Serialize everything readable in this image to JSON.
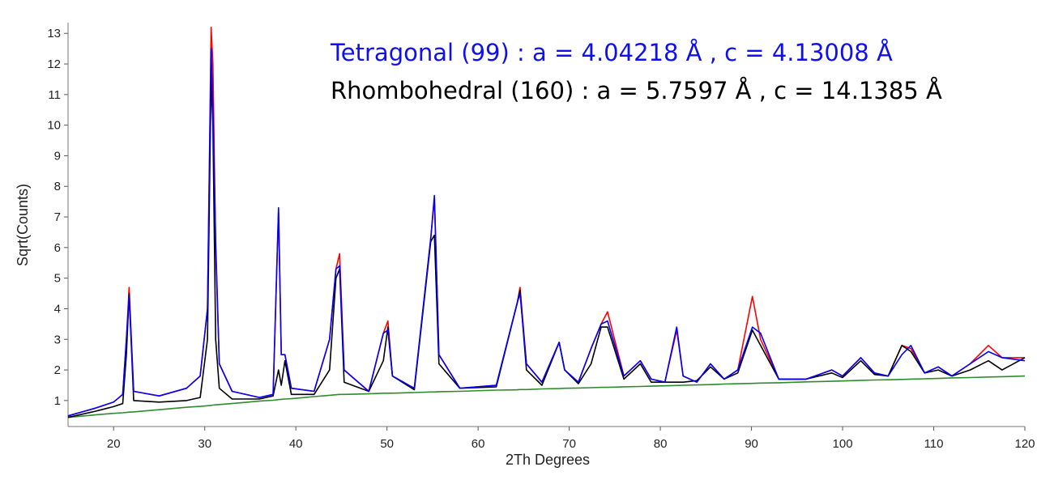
{
  "chart_data": {
    "type": "line",
    "x_label": "2Th Degrees",
    "y_label": "Sqrt(Counts)",
    "annotations": [
      {
        "text": "Tetragonal (99) : a = 4.04218 Å , c = 4.13008 Å",
        "color": "#1010ee"
      },
      {
        "text": "Rhombohedral (160) : a = 5.7597 Å , c = 14.1385 Å",
        "color": "#000000"
      }
    ],
    "xlim": [
      15,
      120
    ],
    "ylim": [
      0.15,
      13.35
    ],
    "xticks": [
      20,
      30,
      40,
      50,
      60,
      70,
      80,
      90,
      100,
      110,
      120
    ],
    "yticks": [
      1,
      2,
      3,
      4,
      5,
      6,
      7,
      8,
      9,
      10,
      11,
      12,
      13
    ],
    "x": [
      15,
      18,
      20,
      21,
      21.4,
      21.7,
      22.2,
      25,
      28,
      29.5,
      30.3,
      30.7,
      30.9,
      31.2,
      31.6,
      33,
      36,
      37.5,
      38.1,
      38.4,
      38.8,
      39.5,
      42,
      43.7,
      44.4,
      44.8,
      45.3,
      48,
      49.6,
      50.1,
      50.6,
      53,
      54.8,
      55.2,
      55.7,
      58,
      62,
      64.3,
      64.6,
      65.3,
      67,
      68.9,
      69.5,
      71,
      72.4,
      73.5,
      74.2,
      76,
      77.8,
      79,
      80.5,
      81.8,
      82.5,
      84,
      85.5,
      87,
      88.5,
      90.1,
      91,
      93,
      96,
      98.8,
      100,
      102,
      103.5,
      105,
      106.5,
      107.5,
      109,
      110.5,
      112,
      114,
      116,
      117.5,
      120
    ],
    "series": [
      {
        "color": "#ff0000",
        "values": [
          0.5,
          0.75,
          0.95,
          1.2,
          3.0,
          4.7,
          1.3,
          1.15,
          1.4,
          1.8,
          4,
          13.2,
          12.0,
          6,
          2.2,
          1.3,
          1.1,
          1.2,
          7.2,
          2.5,
          2.5,
          1.4,
          1.3,
          3.0,
          5.3,
          5.8,
          2.0,
          1.3,
          3.2,
          3.6,
          1.8,
          1.4,
          6.3,
          7.6,
          2.5,
          1.4,
          1.5,
          4.2,
          4.7,
          2.2,
          1.6,
          2.9,
          2.0,
          1.6,
          2.7,
          3.5,
          3.9,
          1.8,
          2.3,
          1.7,
          1.6,
          3.3,
          1.8,
          1.6,
          2.2,
          1.7,
          2.0,
          4.4,
          3.0,
          1.7,
          1.7,
          2.0,
          1.8,
          2.4,
          1.9,
          1.8,
          2.8,
          2.7,
          1.9,
          2.1,
          1.8,
          2.2,
          2.8,
          2.4,
          2.4
        ]
      },
      {
        "color": "#2e8b2e",
        "values": [
          0.45,
          0.53,
          0.58,
          0.6,
          0.61,
          0.62,
          0.63,
          0.7,
          0.78,
          0.81,
          0.83,
          0.84,
          0.85,
          0.86,
          0.87,
          0.9,
          0.98,
          1.01,
          1.03,
          1.04,
          1.05,
          1.06,
          1.13,
          1.17,
          1.19,
          1.2,
          1.2,
          1.22,
          1.24,
          1.24,
          1.24,
          1.26,
          1.28,
          1.28,
          1.29,
          1.3,
          1.34,
          1.35,
          1.36,
          1.36,
          1.38,
          1.39,
          1.4,
          1.41,
          1.42,
          1.43,
          1.43,
          1.45,
          1.46,
          1.47,
          1.48,
          1.49,
          1.5,
          1.51,
          1.52,
          1.54,
          1.55,
          1.56,
          1.57,
          1.58,
          1.61,
          1.63,
          1.64,
          1.66,
          1.67,
          1.68,
          1.69,
          1.7,
          1.71,
          1.72,
          1.74,
          1.75,
          1.77,
          1.78,
          1.8
        ]
      },
      {
        "color": "#000000",
        "values": [
          0.45,
          0.65,
          0.8,
          0.9,
          2.5,
          4.5,
          1.0,
          0.95,
          1.0,
          1.1,
          3,
          11.6,
          10,
          3,
          1.4,
          1.05,
          1.05,
          1.15,
          2.0,
          1.5,
          2.3,
          1.2,
          1.2,
          2.0,
          5.0,
          5.3,
          1.6,
          1.3,
          2.3,
          3.4,
          1.8,
          1.35,
          6.2,
          6.4,
          2.2,
          1.4,
          1.45,
          4.2,
          4.6,
          2.0,
          1.5,
          2.9,
          2.0,
          1.55,
          2.2,
          3.4,
          3.4,
          1.7,
          2.2,
          1.6,
          1.6,
          1.6,
          1.6,
          1.65,
          2.1,
          1.7,
          1.9,
          3.3,
          2.8,
          1.7,
          1.7,
          1.9,
          1.75,
          2.3,
          1.85,
          1.8,
          2.8,
          2.6,
          1.9,
          2.0,
          1.8,
          2.0,
          2.3,
          2.0,
          2.4
        ]
      },
      {
        "color": "#0000ff",
        "values": [
          0.5,
          0.75,
          0.95,
          1.2,
          3.0,
          4.4,
          1.3,
          1.15,
          1.4,
          1.8,
          4,
          12.5,
          10.5,
          6.2,
          2.2,
          1.3,
          1.1,
          1.2,
          7.3,
          2.5,
          2.5,
          1.4,
          1.3,
          3.0,
          5.3,
          5.4,
          2.0,
          1.3,
          3.2,
          3.3,
          1.8,
          1.4,
          6.3,
          7.7,
          2.5,
          1.4,
          1.5,
          4.2,
          4.5,
          2.2,
          1.6,
          2.9,
          2.0,
          1.6,
          2.7,
          3.5,
          3.6,
          1.8,
          2.3,
          1.7,
          1.6,
          3.4,
          1.8,
          1.6,
          2.2,
          1.7,
          2.0,
          3.4,
          3.2,
          1.7,
          1.7,
          2.0,
          1.8,
          2.4,
          1.9,
          1.8,
          2.5,
          2.8,
          1.9,
          2.1,
          1.8,
          2.2,
          2.6,
          2.4,
          2.3
        ]
      }
    ]
  }
}
